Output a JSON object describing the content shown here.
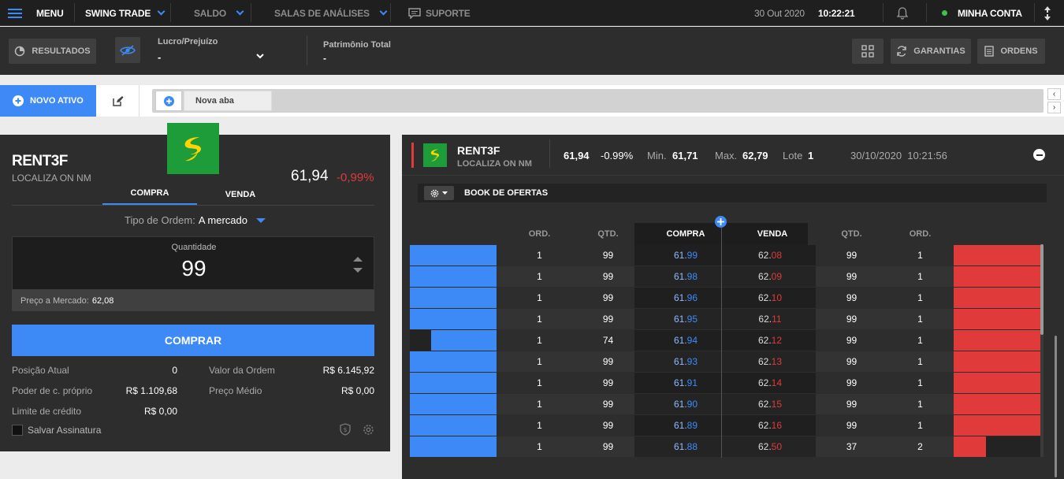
{
  "topbar": {
    "menu_label": "MENU",
    "mode_label": "SWING TRADE",
    "saldo_label": "SALDO",
    "salas_label": "SALAS DE ANÁLISES",
    "suporte_label": "SUPORTE",
    "date": "30 Out 2020",
    "time": "10:22:21",
    "account_label": "MINHA CONTA"
  },
  "bar2": {
    "results_label": "RESULTADOS",
    "lucro_label": "Lucro/Prejuízo",
    "lucro_value": "-",
    "patrimonio_label": "Patrimônio Total",
    "patrimonio_value": "-",
    "garantias_label": "GARANTIAS",
    "ordens_label": "ORDENS"
  },
  "tabs": {
    "novo_ativo_label": "NOVO ATIVO",
    "tab_label": "Nova aba"
  },
  "order": {
    "ticker": "RENT3F",
    "company": "LOCALIZA ON NM",
    "price": "61,94",
    "change": "-0,99%",
    "tab_buy": "COMPRA",
    "tab_sell": "VENDA",
    "order_type_label": "Tipo de Ordem:",
    "order_type_value": "A mercado",
    "quantity_label": "Quantidade",
    "quantity_value": "99",
    "market_price_label": "Preço a Mercado:",
    "market_price_value": "62,08",
    "buy_button": "COMPRAR",
    "posicao_label": "Posição Atual",
    "posicao_value": "0",
    "valor_ordem_label": "Valor da Ordem",
    "valor_ordem_value": "R$ 6.145,92",
    "poder_label": "Poder de c. próprio",
    "poder_value": "R$ 1.109,68",
    "preco_medio_label": "Preço Médio",
    "preco_medio_value": "R$ 0,00",
    "limite_label": "Limite de crédito",
    "limite_value": "R$ 0,00",
    "salvar_label": "Salvar Assinatura"
  },
  "book": {
    "ticker": "RENT3F",
    "company": "LOCALIZA ON NM",
    "price": "61,94",
    "change": "-0.99%",
    "min_label": "Min.",
    "min_value": "61,71",
    "max_label": "Max.",
    "max_value": "62,79",
    "lote_label": "Lote",
    "lote_value": "1",
    "datetime": "30/10/2020  10:21:56",
    "title": "BOOK DE OFERTAS",
    "headers": {
      "ord_buy": "ORD.",
      "qtd_buy": "QTD.",
      "compra": "COMPRA",
      "venda": "VENDA",
      "qtd_sell": "QTD.",
      "ord_sell": "ORD."
    },
    "rows": [
      {
        "ord_buy": "1",
        "qtd_buy": "99",
        "buy_int": "61.",
        "buy_dec": "99",
        "sell_int": "62.",
        "sell_dec": "08",
        "qtd_sell": "99",
        "ord_sell": "1"
      },
      {
        "ord_buy": "1",
        "qtd_buy": "99",
        "buy_int": "61.",
        "buy_dec": "98",
        "sell_int": "62.",
        "sell_dec": "09",
        "qtd_sell": "99",
        "ord_sell": "1"
      },
      {
        "ord_buy": "1",
        "qtd_buy": "99",
        "buy_int": "61.",
        "buy_dec": "96",
        "sell_int": "62.",
        "sell_dec": "10",
        "qtd_sell": "99",
        "ord_sell": "1"
      },
      {
        "ord_buy": "1",
        "qtd_buy": "99",
        "buy_int": "61.",
        "buy_dec": "95",
        "sell_int": "62.",
        "sell_dec": "11",
        "qtd_sell": "99",
        "ord_sell": "1"
      },
      {
        "ord_buy": "1",
        "qtd_buy": "74",
        "buy_int": "61.",
        "buy_dec": "94",
        "sell_int": "62.",
        "sell_dec": "12",
        "qtd_sell": "99",
        "ord_sell": "1"
      },
      {
        "ord_buy": "1",
        "qtd_buy": "99",
        "buy_int": "61.",
        "buy_dec": "93",
        "sell_int": "62.",
        "sell_dec": "13",
        "qtd_sell": "99",
        "ord_sell": "1"
      },
      {
        "ord_buy": "1",
        "qtd_buy": "99",
        "buy_int": "61.",
        "buy_dec": "91",
        "sell_int": "62.",
        "sell_dec": "14",
        "qtd_sell": "99",
        "ord_sell": "1"
      },
      {
        "ord_buy": "1",
        "qtd_buy": "99",
        "buy_int": "61.",
        "buy_dec": "90",
        "sell_int": "62.",
        "sell_dec": "15",
        "qtd_sell": "99",
        "ord_sell": "1"
      },
      {
        "ord_buy": "1",
        "qtd_buy": "99",
        "buy_int": "61.",
        "buy_dec": "89",
        "sell_int": "62.",
        "sell_dec": "16",
        "qtd_sell": "99",
        "ord_sell": "1"
      },
      {
        "ord_buy": "1",
        "qtd_buy": "99",
        "buy_int": "61.",
        "buy_dec": "88",
        "sell_int": "62.",
        "sell_dec": "50",
        "qtd_sell": "37",
        "ord_sell": "2"
      }
    ],
    "buy_depth": [
      1,
      1,
      1,
      1,
      0.75,
      1,
      1,
      1,
      1,
      1
    ],
    "sell_depth": [
      1,
      1,
      1,
      1,
      1,
      1,
      1,
      1,
      1,
      0.37
    ]
  },
  "colors": {
    "blue": "#3d8af7",
    "red": "#e03a3a",
    "green": "#1f9c3a",
    "logo_yellow": "#ffd400"
  }
}
